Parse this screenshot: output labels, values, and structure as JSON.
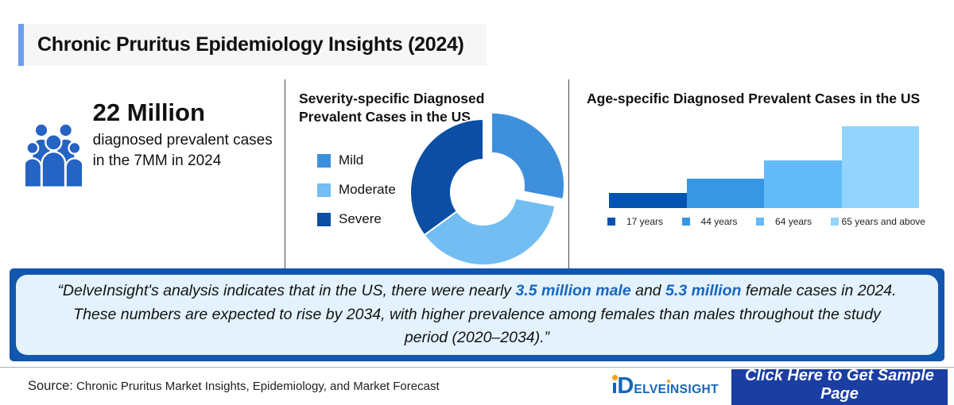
{
  "header": {
    "title": "Chronic Pruritus Epidemiology Insights (2024)",
    "accent_color": "#6D9EEB"
  },
  "key_stat": {
    "icon": "people-group-icon",
    "icon_color": "#2563C4",
    "value": "22 Million",
    "description": "diagnosed prevalent cases in the 7MM in 2024"
  },
  "chart_data": [
    {
      "type": "pie",
      "donut": true,
      "title": "Severity-specific Diagnosed Prevalent Cases in the US",
      "legend_position": "left",
      "values_labeled": false,
      "segments": [
        {
          "label": "Mild",
          "percent": 28,
          "color": "#3E90DC",
          "exploded": true
        },
        {
          "label": "Moderate",
          "percent": 37,
          "color": "#72BEF2",
          "exploded": false
        },
        {
          "label": "Severe",
          "percent": 35,
          "color": "#0B4EA4",
          "exploded": false
        }
      ]
    },
    {
      "type": "bar",
      "title": "Age-specific Diagnosed Prevalent Cases in the US",
      "categories": [
        "17 years",
        "44 years",
        "64 years",
        "65 years and above"
      ],
      "values": [
        18,
        36,
        58,
        100
      ],
      "values_are_relative_heights_percent_of_max": true,
      "axis_labels_visible": false,
      "grid": false,
      "legend_position": "bottom",
      "colors": [
        "#0254B0",
        "#3996E3",
        "#64BBFA",
        "#92D4FD"
      ]
    }
  ],
  "quote": {
    "highlight_color": "#1767C0",
    "segments": [
      {
        "text": "“DelveInsight's analysis indicates that in the US, there were nearly ",
        "highlight": false
      },
      {
        "text": "3.5 million male",
        "highlight": true
      },
      {
        "text": " and ",
        "highlight": false
      },
      {
        "text": "5.3 million",
        "highlight": true
      },
      {
        "text": " female cases in 2024. These numbers are expected to rise by 2034, with higher prevalence among females than males throughout the study period (2020–2034).”",
        "highlight": false
      }
    ]
  },
  "footer": {
    "source_label": "Source:",
    "source_text": "Chronic Pruritus Market Insights, Epidemiology, and Market Forecast",
    "logo": {
      "name": "delveinsight-logo",
      "d": "D",
      "part1": "ELVE",
      "i": "I",
      "part2": "NSIGHT"
    },
    "cta_label": "Click Here to Get Sample Page"
  }
}
